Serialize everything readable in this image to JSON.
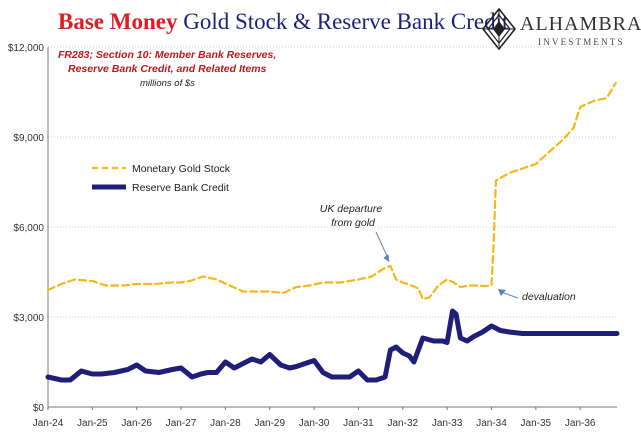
{
  "header": {
    "title_red": "Base Money",
    "title_blue": "Gold Stock & Reserve Bank Credit"
  },
  "logo": {
    "name": "ALHAMBRA",
    "sub": "INVESTMENTS",
    "icon": "alhambra-diamond-logo"
  },
  "colors": {
    "gold": "#f5b818",
    "credit": "#1f1f7a",
    "title_red": "#e01b22",
    "note_red": "#c0181e"
  },
  "chart_data": {
    "type": "line",
    "source_note": [
      "FR283; Section 10: Member Bank Reserves,",
      "Reserve Bank Credit, and Related Items"
    ],
    "units_note": "millions of $s",
    "ylim": [
      0,
      12000
    ],
    "yticks": [
      "$0",
      "$3,000",
      "$6,000",
      "$9,000",
      "$12,000"
    ],
    "xlim": [
      1924.0,
      1936.83
    ],
    "xticks": [
      "Jan-24",
      "Jan-25",
      "Jan-26",
      "Jan-27",
      "Jan-28",
      "Jan-29",
      "Jan-30",
      "Jan-31",
      "Jan-32",
      "Jan-33",
      "Jan-34",
      "Jan-35",
      "Jan-36"
    ],
    "grid": true,
    "legend_position": "left-middle",
    "series": [
      {
        "name": "Monetary Gold Stock",
        "style": "dashed",
        "x": [
          1924.0,
          1924.3,
          1924.6,
          1925.0,
          1925.3,
          1925.7,
          1926.0,
          1926.4,
          1926.8,
          1927.0,
          1927.2,
          1927.5,
          1927.8,
          1928.1,
          1928.4,
          1928.8,
          1929.0,
          1929.3,
          1929.6,
          1929.9,
          1930.2,
          1930.6,
          1931.0,
          1931.3,
          1931.55,
          1931.72,
          1931.85,
          1932.0,
          1932.2,
          1932.35,
          1932.45,
          1932.6,
          1932.8,
          1933.0,
          1933.15,
          1933.3,
          1933.5,
          1933.7,
          1933.85,
          1934.0,
          1934.05,
          1934.1,
          1934.4,
          1934.7,
          1935.0,
          1935.3,
          1935.6,
          1935.85,
          1936.0,
          1936.3,
          1936.6,
          1936.8
        ],
        "values": [
          3900,
          4100,
          4250,
          4200,
          4050,
          4050,
          4100,
          4100,
          4150,
          4150,
          4200,
          4350,
          4250,
          4050,
          3850,
          3850,
          3850,
          3800,
          4000,
          4050,
          4150,
          4150,
          4250,
          4350,
          4600,
          4700,
          4250,
          4150,
          4050,
          3950,
          3600,
          3650,
          4050,
          4250,
          4150,
          4000,
          4050,
          4050,
          4030,
          4050,
          5500,
          7550,
          7800,
          7950,
          8100,
          8500,
          8900,
          9300,
          10000,
          10200,
          10300,
          10800
        ]
      },
      {
        "name": "Reserve Bank Credit",
        "style": "solid",
        "x": [
          1924.0,
          1924.15,
          1924.3,
          1924.5,
          1924.75,
          1925.0,
          1925.2,
          1925.5,
          1925.8,
          1926.0,
          1926.2,
          1926.5,
          1926.8,
          1927.0,
          1927.25,
          1927.45,
          1927.6,
          1927.8,
          1928.0,
          1928.2,
          1928.4,
          1928.6,
          1928.8,
          1929.0,
          1929.25,
          1929.45,
          1929.6,
          1929.8,
          1930.0,
          1930.2,
          1930.4,
          1930.6,
          1930.8,
          1931.0,
          1931.2,
          1931.4,
          1931.6,
          1931.72,
          1931.85,
          1932.0,
          1932.15,
          1932.25,
          1932.45,
          1932.7,
          1932.9,
          1933.0,
          1933.12,
          1933.2,
          1933.3,
          1933.45,
          1933.6,
          1933.8,
          1934.0,
          1934.2,
          1934.4,
          1934.7,
          1935.0,
          1935.5,
          1936.0,
          1936.5,
          1936.83
        ],
        "values": [
          1000,
          950,
          900,
          900,
          1200,
          1100,
          1100,
          1150,
          1250,
          1400,
          1200,
          1150,
          1250,
          1300,
          1000,
          1100,
          1150,
          1150,
          1500,
          1300,
          1450,
          1600,
          1500,
          1750,
          1400,
          1300,
          1350,
          1450,
          1550,
          1150,
          1000,
          1000,
          1000,
          1200,
          900,
          900,
          1000,
          1900,
          2000,
          1800,
          1700,
          1500,
          2300,
          2200,
          2200,
          2150,
          3200,
          3100,
          2300,
          2200,
          2350,
          2500,
          2700,
          2550,
          2500,
          2450,
          2450,
          2450,
          2450,
          2450,
          2450
        ]
      }
    ],
    "annotations": [
      {
        "lines": [
          "UK departure",
          "from gold"
        ],
        "x": 1931.72,
        "y": 4700
      },
      {
        "lines": [
          "devaluation"
        ],
        "x": 1934.1,
        "y": 4000
      }
    ]
  }
}
